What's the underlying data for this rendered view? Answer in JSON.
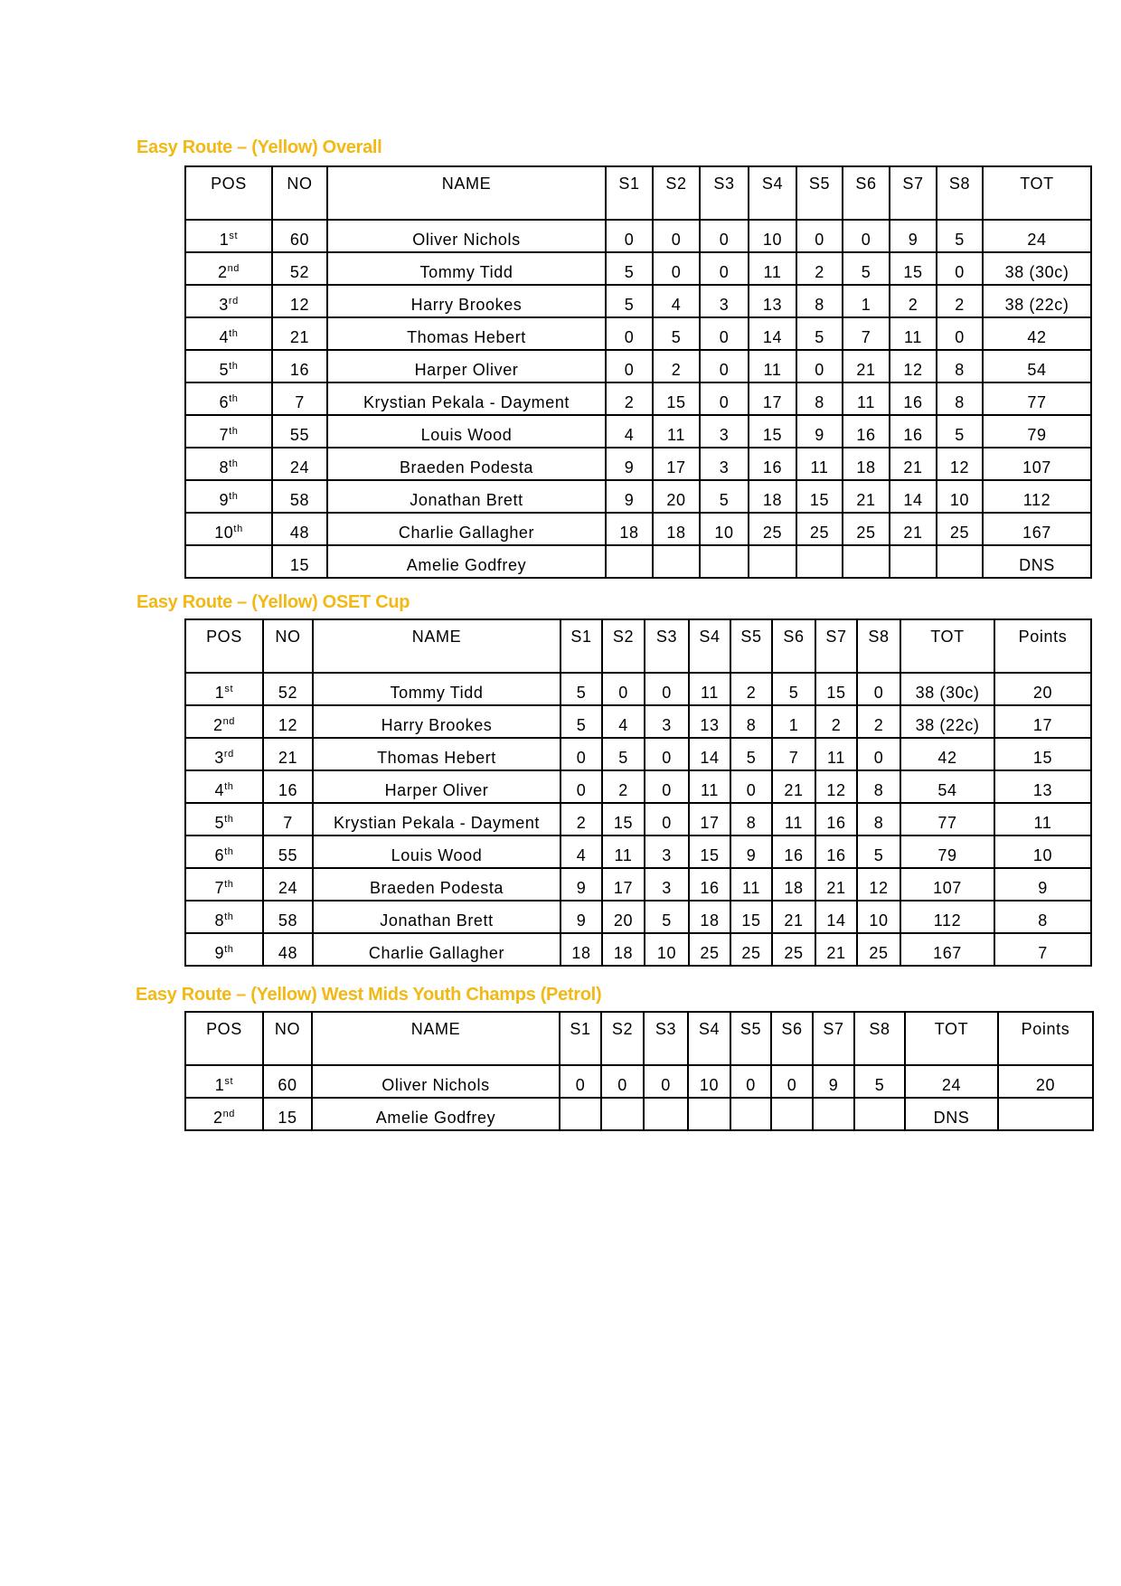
{
  "tables": [
    {
      "title": "Easy Route – (Yellow) Overall",
      "headers": [
        "POS",
        "NO",
        "NAME",
        "S1",
        "S2",
        "S3",
        "S4",
        "S5",
        "S6",
        "S7",
        "S8",
        "TOT"
      ],
      "rows": [
        {
          "pos": "1",
          "suffix": "st",
          "cells": [
            "60",
            "Oliver Nichols",
            "0",
            "0",
            "0",
            "10",
            "0",
            "0",
            "9",
            "5",
            "24"
          ]
        },
        {
          "pos": "2",
          "suffix": "nd",
          "cells": [
            "52",
            "Tommy Tidd",
            "5",
            "0",
            "0",
            "11",
            "2",
            "5",
            "15",
            "0",
            "38 (30c)"
          ]
        },
        {
          "pos": "3",
          "suffix": "rd",
          "cells": [
            "12",
            "Harry Brookes",
            "5",
            "4",
            "3",
            "13",
            "8",
            "1",
            "2",
            "2",
            "38 (22c)"
          ]
        },
        {
          "pos": "4",
          "suffix": "th",
          "cells": [
            "21",
            "Thomas Hebert",
            "0",
            "5",
            "0",
            "14",
            "5",
            "7",
            "11",
            "0",
            "42"
          ]
        },
        {
          "pos": "5",
          "suffix": "th",
          "cells": [
            "16",
            "Harper Oliver",
            "0",
            "2",
            "0",
            "11",
            "0",
            "21",
            "12",
            "8",
            "54"
          ]
        },
        {
          "pos": "6",
          "suffix": "th",
          "cells": [
            "7",
            "Krystian Pekala - Dayment",
            "2",
            "15",
            "0",
            "17",
            "8",
            "11",
            "16",
            "8",
            "77"
          ]
        },
        {
          "pos": "7",
          "suffix": "th",
          "cells": [
            "55",
            "Louis Wood",
            "4",
            "11",
            "3",
            "15",
            "9",
            "16",
            "16",
            "5",
            "79"
          ]
        },
        {
          "pos": "8",
          "suffix": "th",
          "cells": [
            "24",
            "Braeden Podesta",
            "9",
            "17",
            "3",
            "16",
            "11",
            "18",
            "21",
            "12",
            "107"
          ]
        },
        {
          "pos": "9",
          "suffix": "th",
          "cells": [
            "58",
            "Jonathan Brett",
            "9",
            "20",
            "5",
            "18",
            "15",
            "21",
            "14",
            "10",
            "112"
          ]
        },
        {
          "pos": "10",
          "suffix": "th",
          "cells": [
            "48",
            "Charlie Gallagher",
            "18",
            "18",
            "10",
            "25",
            "25",
            "25",
            "21",
            "25",
            "167"
          ]
        },
        {
          "pos": "",
          "suffix": "",
          "cells": [
            "15",
            "Amelie Godfrey",
            "",
            "",
            "",
            "",
            "",
            "",
            "",
            "",
            "DNS"
          ]
        }
      ]
    },
    {
      "title": "Easy Route – (Yellow) OSET Cup",
      "headers": [
        "POS",
        "NO",
        "NAME",
        "S1",
        "S2",
        "S3",
        "S4",
        "S5",
        "S6",
        "S7",
        "S8",
        "TOT",
        "Points"
      ],
      "rows": [
        {
          "pos": "1",
          "suffix": "st",
          "cells": [
            "52",
            "Tommy Tidd",
            "5",
            "0",
            "0",
            "11",
            "2",
            "5",
            "15",
            "0",
            "38 (30c)",
            "20"
          ]
        },
        {
          "pos": "2",
          "suffix": "nd",
          "cells": [
            "12",
            "Harry Brookes",
            "5",
            "4",
            "3",
            "13",
            "8",
            "1",
            "2",
            "2",
            "38 (22c)",
            "17"
          ]
        },
        {
          "pos": "3",
          "suffix": "rd",
          "cells": [
            "21",
            "Thomas Hebert",
            "0",
            "5",
            "0",
            "14",
            "5",
            "7",
            "11",
            "0",
            "42",
            "15"
          ]
        },
        {
          "pos": "4",
          "suffix": "th",
          "cells": [
            "16",
            "Harper Oliver",
            "0",
            "2",
            "0",
            "11",
            "0",
            "21",
            "12",
            "8",
            "54",
            "13"
          ]
        },
        {
          "pos": "5",
          "suffix": "th",
          "cells": [
            "7",
            "Krystian Pekala - Dayment",
            "2",
            "15",
            "0",
            "17",
            "8",
            "11",
            "16",
            "8",
            "77",
            "11"
          ]
        },
        {
          "pos": "6",
          "suffix": "th",
          "cells": [
            "55",
            "Louis Wood",
            "4",
            "11",
            "3",
            "15",
            "9",
            "16",
            "16",
            "5",
            "79",
            "10"
          ]
        },
        {
          "pos": "7",
          "suffix": "th",
          "cells": [
            "24",
            "Braeden Podesta",
            "9",
            "17",
            "3",
            "16",
            "11",
            "18",
            "21",
            "12",
            "107",
            "9"
          ]
        },
        {
          "pos": "8",
          "suffix": "th",
          "cells": [
            "58",
            "Jonathan Brett",
            "9",
            "20",
            "5",
            "18",
            "15",
            "21",
            "14",
            "10",
            "112",
            "8"
          ]
        },
        {
          "pos": "9",
          "suffix": "th",
          "cells": [
            "48",
            "Charlie Gallagher",
            "18",
            "18",
            "10",
            "25",
            "25",
            "25",
            "21",
            "25",
            "167",
            "7"
          ]
        }
      ]
    },
    {
      "title": "Easy Route – (Yellow) West Mids Youth Champs (Petrol)",
      "headers": [
        "POS",
        "NO",
        "NAME",
        "S1",
        "S2",
        "S3",
        "S4",
        "S5",
        "S6",
        "S7",
        "S8",
        "TOT",
        "Points"
      ],
      "rows": [
        {
          "pos": "1",
          "suffix": "st",
          "cells": [
            "60",
            "Oliver Nichols",
            "0",
            "0",
            "0",
            "10",
            "0",
            "0",
            "9",
            "5",
            "24",
            "20"
          ]
        },
        {
          "pos": "2",
          "suffix": "nd",
          "cells": [
            "15",
            "Amelie Godfrey",
            "",
            "",
            "",
            "",
            "",
            "",
            "",
            "",
            "DNS",
            ""
          ]
        }
      ]
    }
  ]
}
